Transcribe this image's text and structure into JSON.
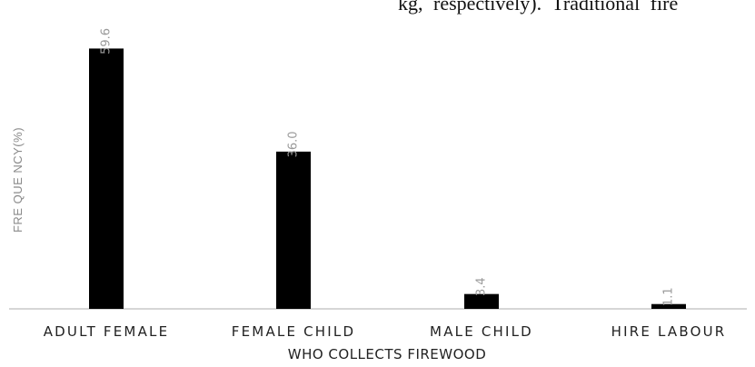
{
  "header_text": "kg, respectively). Traditional fire",
  "chart_data": {
    "type": "bar",
    "categories": [
      "ADULT FEMALE",
      "FEMALE CHILD",
      "MALE CHILD",
      "HIRE LABOUR"
    ],
    "values": [
      59.6,
      36.0,
      3.4,
      1.1
    ],
    "data_labels": [
      "59.6",
      "36.0",
      "3.4",
      "1.1"
    ],
    "xlabel": "WHO COLLECTS FIREWOOD",
    "ylabel": "FRE QUE NCY(%)",
    "ylim": [
      0,
      60
    ],
    "grid": false,
    "legend": "none",
    "bar_color": "#000000"
  }
}
